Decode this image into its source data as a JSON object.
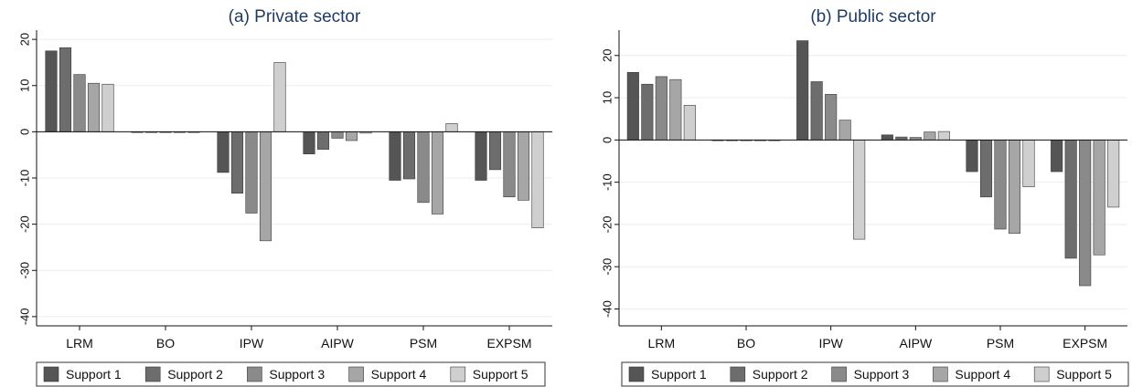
{
  "chart_data": [
    {
      "type": "bar",
      "title": "(a) Private sector",
      "categories": [
        "LRM",
        "BO",
        "IPW",
        "AIPW",
        "PSM",
        "EXPSM"
      ],
      "series": [
        {
          "name": "Support 1",
          "color": "#555555",
          "values": [
            17.5,
            0,
            -8.8,
            -4.8,
            -10.5,
            -10.5
          ]
        },
        {
          "name": "Support 2",
          "color": "#6d6d6d",
          "values": [
            18.2,
            0,
            -13.3,
            -3.8,
            -10.2,
            -8.2
          ]
        },
        {
          "name": "Support 3",
          "color": "#8a8a8a",
          "values": [
            12.4,
            0,
            -17.6,
            -1.4,
            -15.3,
            -14.1
          ]
        },
        {
          "name": "Support 4",
          "color": "#a6a6a6",
          "values": [
            10.5,
            0,
            -23.6,
            -1.9,
            -17.8,
            -14.8
          ]
        },
        {
          "name": "Support 5",
          "color": "#cfcfcf",
          "values": [
            10.3,
            0,
            15.0,
            -0.3,
            1.8,
            -20.8
          ]
        }
      ],
      "ylim": [
        -42,
        22
      ],
      "yticks": [
        20,
        10,
        0,
        -10,
        -20,
        -30,
        -40
      ],
      "legend": "bottom",
      "grid": true
    },
    {
      "type": "bar",
      "title": "(b) Public sector",
      "categories": [
        "LRM",
        "BO",
        "IPW",
        "AIPW",
        "PSM",
        "EXPSM"
      ],
      "series": [
        {
          "name": "Support 1",
          "color": "#555555",
          "values": [
            16.0,
            0,
            23.5,
            1.2,
            -7.5,
            -7.5
          ]
        },
        {
          "name": "Support 2",
          "color": "#6d6d6d",
          "values": [
            13.2,
            0,
            13.8,
            0.7,
            -13.5,
            -28.0
          ]
        },
        {
          "name": "Support 3",
          "color": "#8a8a8a",
          "values": [
            15.0,
            0,
            10.8,
            0.6,
            -21.1,
            -34.5
          ]
        },
        {
          "name": "Support 4",
          "color": "#a6a6a6",
          "values": [
            14.3,
            0,
            4.7,
            1.9,
            -22.1,
            -27.2
          ]
        },
        {
          "name": "Support 5",
          "color": "#cfcfcf",
          "values": [
            8.2,
            0,
            -23.5,
            2.0,
            -11.1,
            -15.9
          ]
        }
      ],
      "ylim": [
        -44,
        26
      ],
      "yticks": [
        20,
        10,
        0,
        -10,
        -20,
        -30,
        -40
      ],
      "legend": "bottom",
      "grid": true
    }
  ]
}
